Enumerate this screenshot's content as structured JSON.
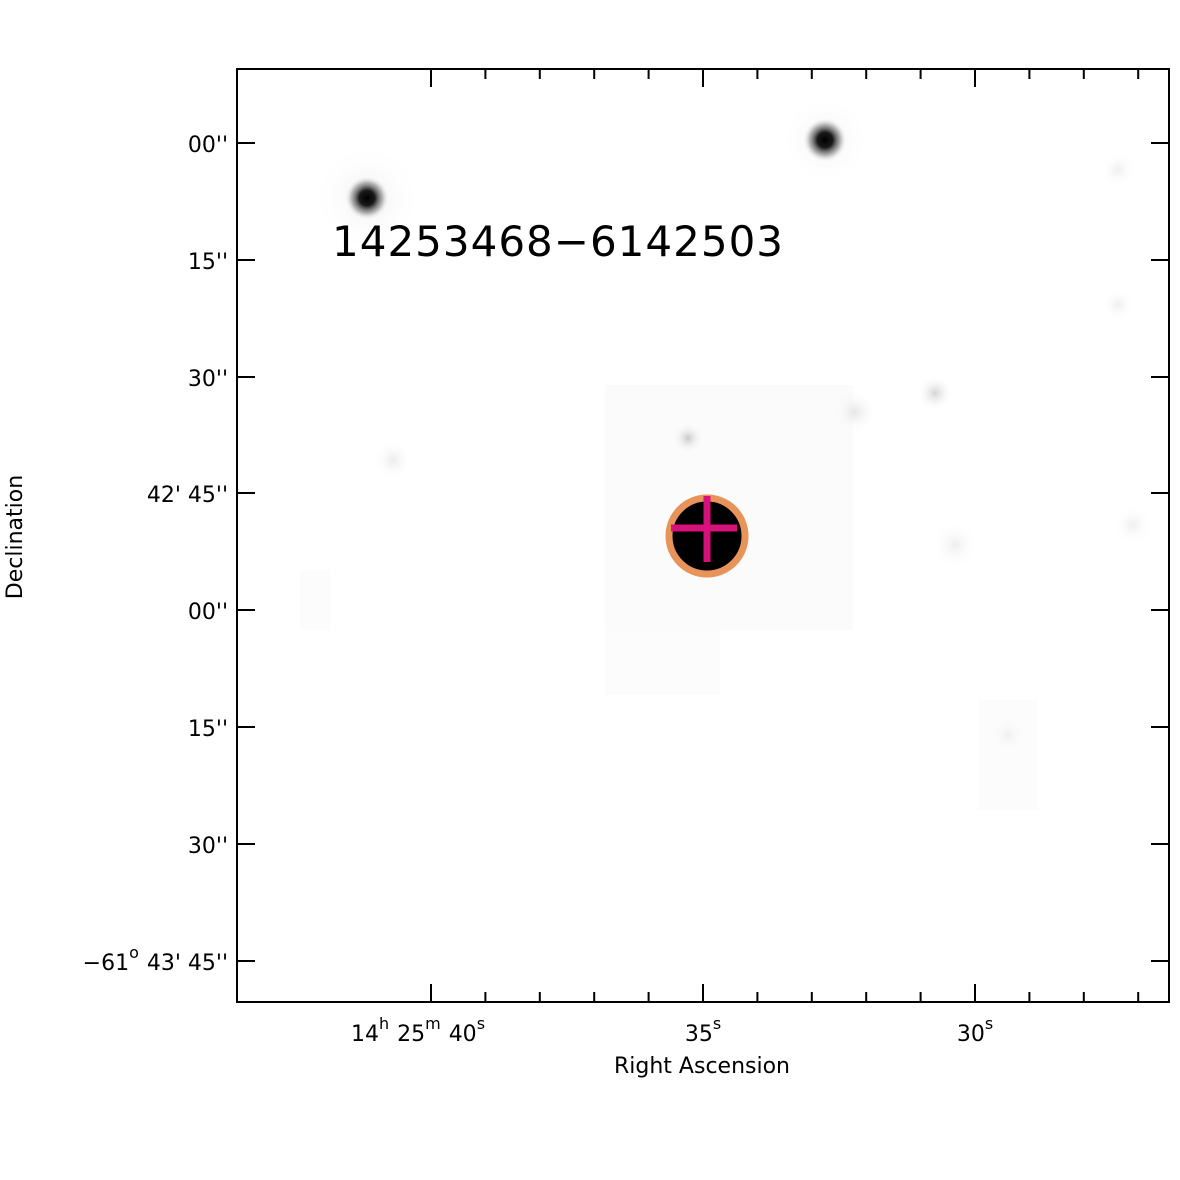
{
  "image": {
    "source_label": "14253468−6142503",
    "label_color": "#1f5a3a",
    "marker_ring_color": "#e8935a",
    "marker_cross_color": "#d6127a"
  },
  "axes": {
    "xlabel": "Right Ascension",
    "ylabel": "Declination",
    "x_ticks": [
      {
        "h": "14",
        "h_unit": "h",
        "m": "25",
        "m_unit": "m",
        "s": "40",
        "s_unit": "s"
      },
      {
        "s": "35",
        "s_unit": "s"
      },
      {
        "s": "30",
        "s_unit": "s"
      }
    ],
    "y_ticks": [
      {
        "text": "00''"
      },
      {
        "text": "15''"
      },
      {
        "text": "30''"
      },
      {
        "text": "42' 45''"
      },
      {
        "text": "00''"
      },
      {
        "text": "15''"
      },
      {
        "text": "30''"
      },
      {
        "deg": "−61",
        "deg_unit": "o",
        "rest": "43' 45''"
      }
    ]
  }
}
